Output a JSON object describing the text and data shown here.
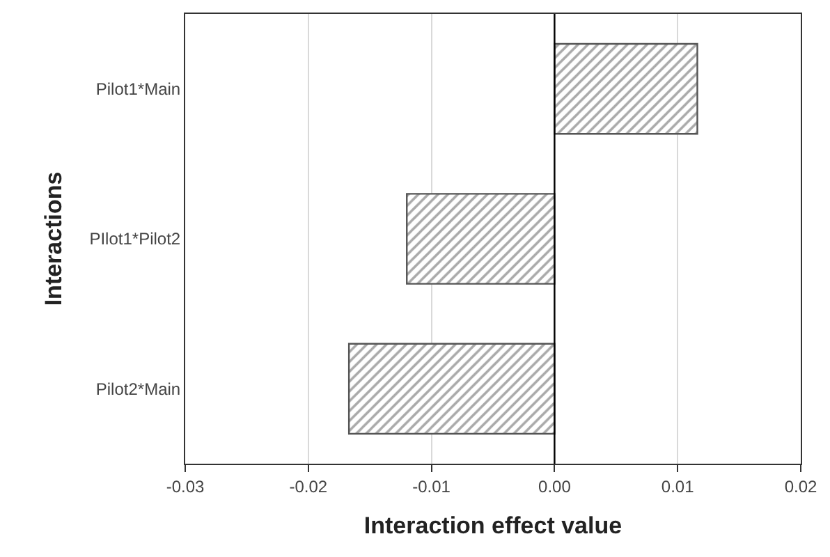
{
  "chart_data": {
    "type": "bar",
    "orientation": "horizontal",
    "xlabel": "Interaction effect value",
    "ylabel": "Interactions",
    "categories": [
      "Pilot1*Main",
      "PIlot1*Pilot2",
      "Pilot2*Main"
    ],
    "values": [
      0.0116,
      -0.012,
      -0.0167
    ],
    "color": "#555555",
    "xlim": [
      -0.03,
      0.02
    ],
    "xticks": [
      {
        "value": -0.03,
        "label": "-0.03"
      },
      {
        "value": -0.02,
        "label": "-0.02"
      },
      {
        "value": -0.01,
        "label": "-0.01"
      },
      {
        "value": 0,
        "label": "0.00"
      },
      {
        "value": 0.01,
        "label": "0.01"
      },
      {
        "value": 0.02,
        "label": "0.02"
      }
    ],
    "ref_lines": [
      {
        "axis": "x",
        "value": 0,
        "color": "#000000"
      }
    ],
    "grid": "x"
  }
}
